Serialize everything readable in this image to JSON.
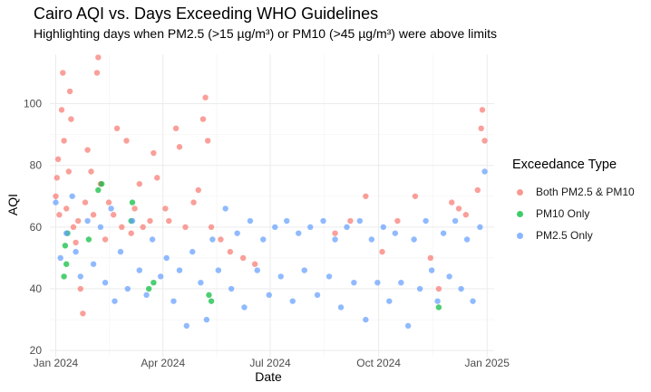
{
  "chart_data": {
    "type": "scatter",
    "title": "Cairo AQI vs. Days Exceeding WHO Guidelines",
    "subtitle": "Highlighting days when PM2.5 (>15 µg/m³) or PM10 (>45 µg/m³) were above limits",
    "xlabel": "Date",
    "ylabel": "AQI",
    "xlim": [
      "2023-12-27",
      "2025-01-07"
    ],
    "ylim": [
      18,
      116
    ],
    "x_ticks": [
      {
        "date": "2024-01-01",
        "label": "Jan 2024"
      },
      {
        "date": "2024-04-01",
        "label": "Apr 2024"
      },
      {
        "date": "2024-07-01",
        "label": "Jul 2024"
      },
      {
        "date": "2024-10-01",
        "label": "Oct 2024"
      },
      {
        "date": "2025-01-01",
        "label": "Jan 2025"
      }
    ],
    "y_ticks": [
      20,
      40,
      60,
      80,
      100
    ],
    "grid": true,
    "legend": {
      "title": "Exceedance Type",
      "placement": "right"
    },
    "series": [
      {
        "name": "Both PM2.5 & PM10",
        "color": "#F8766D",
        "points": [
          [
            "2024-01-01",
            70
          ],
          [
            "2024-01-02",
            76
          ],
          [
            "2024-01-03",
            82
          ],
          [
            "2024-01-04",
            64
          ],
          [
            "2024-01-06",
            98
          ],
          [
            "2024-01-07",
            110
          ],
          [
            "2024-01-08",
            88
          ],
          [
            "2024-01-10",
            66
          ],
          [
            "2024-01-12",
            78
          ],
          [
            "2024-01-13",
            104
          ],
          [
            "2024-01-14",
            95
          ],
          [
            "2024-01-16",
            60
          ],
          [
            "2024-01-18",
            55
          ],
          [
            "2024-01-20",
            62
          ],
          [
            "2024-01-22",
            40
          ],
          [
            "2024-01-24",
            32
          ],
          [
            "2024-01-26",
            68
          ],
          [
            "2024-01-28",
            85
          ],
          [
            "2024-01-31",
            78
          ],
          [
            "2024-02-02",
            64
          ],
          [
            "2024-02-05",
            110
          ],
          [
            "2024-02-06",
            115
          ],
          [
            "2024-02-08",
            74
          ],
          [
            "2024-02-12",
            56
          ],
          [
            "2024-02-15",
            68
          ],
          [
            "2024-02-19",
            64
          ],
          [
            "2024-02-22",
            92
          ],
          [
            "2024-02-26",
            60
          ],
          [
            "2024-03-01",
            88
          ],
          [
            "2024-03-05",
            58
          ],
          [
            "2024-03-08",
            66
          ],
          [
            "2024-03-12",
            74
          ],
          [
            "2024-03-15",
            60
          ],
          [
            "2024-03-21",
            62
          ],
          [
            "2024-03-24",
            84
          ],
          [
            "2024-03-27",
            76
          ],
          [
            "2024-04-03",
            66
          ],
          [
            "2024-04-06",
            62
          ],
          [
            "2024-04-12",
            92
          ],
          [
            "2024-04-15",
            86
          ],
          [
            "2024-04-20",
            60
          ],
          [
            "2024-04-27",
            68
          ],
          [
            "2024-05-01",
            72
          ],
          [
            "2024-05-05",
            95
          ],
          [
            "2024-05-07",
            102
          ],
          [
            "2024-05-09",
            88
          ],
          [
            "2024-05-12",
            60
          ],
          [
            "2024-05-20",
            56
          ],
          [
            "2024-05-28",
            52
          ],
          [
            "2024-06-08",
            50
          ],
          [
            "2024-06-18",
            48
          ],
          [
            "2024-08-25",
            58
          ],
          [
            "2024-09-07",
            62
          ],
          [
            "2024-09-20",
            70
          ],
          [
            "2024-10-04",
            52
          ],
          [
            "2024-10-17",
            62
          ],
          [
            "2024-11-01",
            70
          ],
          [
            "2024-11-14",
            50
          ],
          [
            "2024-11-21",
            40
          ],
          [
            "2024-12-02",
            68
          ],
          [
            "2024-12-08",
            66
          ],
          [
            "2024-12-14",
            64
          ],
          [
            "2024-12-24",
            72
          ],
          [
            "2024-12-27",
            92
          ],
          [
            "2024-12-28",
            98
          ],
          [
            "2024-12-30",
            88
          ]
        ]
      },
      {
        "name": "PM10 Only",
        "color": "#00BA38",
        "points": [
          [
            "2024-01-08",
            44
          ],
          [
            "2024-01-09",
            54
          ],
          [
            "2024-01-10",
            48
          ],
          [
            "2024-01-11",
            58
          ],
          [
            "2024-01-29",
            56
          ],
          [
            "2024-02-06",
            72
          ],
          [
            "2024-02-09",
            74
          ],
          [
            "2024-03-05",
            62
          ],
          [
            "2024-03-06",
            68
          ],
          [
            "2024-03-20",
            40
          ],
          [
            "2024-03-24",
            42
          ],
          [
            "2024-05-10",
            38
          ],
          [
            "2024-05-12",
            36
          ],
          [
            "2024-11-21",
            34
          ]
        ]
      },
      {
        "name": "PM2.5 Only",
        "color": "#619CFF",
        "points": [
          [
            "2024-01-01",
            68
          ],
          [
            "2024-01-05",
            50
          ],
          [
            "2024-01-10",
            58
          ],
          [
            "2024-01-15",
            70
          ],
          [
            "2024-01-18",
            52
          ],
          [
            "2024-01-22",
            44
          ],
          [
            "2024-01-28",
            62
          ],
          [
            "2024-02-02",
            48
          ],
          [
            "2024-02-08",
            60
          ],
          [
            "2024-02-12",
            42
          ],
          [
            "2024-02-17",
            66
          ],
          [
            "2024-02-20",
            36
          ],
          [
            "2024-02-25",
            52
          ],
          [
            "2024-03-02",
            40
          ],
          [
            "2024-03-06",
            62
          ],
          [
            "2024-03-12",
            46
          ],
          [
            "2024-03-18",
            38
          ],
          [
            "2024-03-23",
            56
          ],
          [
            "2024-03-30",
            44
          ],
          [
            "2024-04-04",
            50
          ],
          [
            "2024-04-10",
            36
          ],
          [
            "2024-04-15",
            46
          ],
          [
            "2024-04-21",
            28
          ],
          [
            "2024-04-26",
            52
          ],
          [
            "2024-05-03",
            42
          ],
          [
            "2024-05-08",
            30
          ],
          [
            "2024-05-13",
            56
          ],
          [
            "2024-05-18",
            46
          ],
          [
            "2024-05-24",
            66
          ],
          [
            "2024-05-29",
            40
          ],
          [
            "2024-06-03",
            58
          ],
          [
            "2024-06-09",
            34
          ],
          [
            "2024-06-14",
            62
          ],
          [
            "2024-06-20",
            46
          ],
          [
            "2024-06-25",
            56
          ],
          [
            "2024-06-30",
            38
          ],
          [
            "2024-07-05",
            60
          ],
          [
            "2024-07-10",
            44
          ],
          [
            "2024-07-15",
            62
          ],
          [
            "2024-07-20",
            36
          ],
          [
            "2024-07-25",
            58
          ],
          [
            "2024-07-30",
            46
          ],
          [
            "2024-08-04",
            60
          ],
          [
            "2024-08-10",
            38
          ],
          [
            "2024-08-15",
            62
          ],
          [
            "2024-08-20",
            44
          ],
          [
            "2024-08-25",
            56
          ],
          [
            "2024-08-30",
            34
          ],
          [
            "2024-09-04",
            60
          ],
          [
            "2024-09-10",
            42
          ],
          [
            "2024-09-15",
            62
          ],
          [
            "2024-09-20",
            30
          ],
          [
            "2024-09-25",
            56
          ],
          [
            "2024-09-30",
            42
          ],
          [
            "2024-10-05",
            60
          ],
          [
            "2024-10-10",
            36
          ],
          [
            "2024-10-15",
            58
          ],
          [
            "2024-10-20",
            42
          ],
          [
            "2024-10-26",
            28
          ],
          [
            "2024-10-31",
            56
          ],
          [
            "2024-11-05",
            40
          ],
          [
            "2024-11-10",
            62
          ],
          [
            "2024-11-15",
            46
          ],
          [
            "2024-11-20",
            36
          ],
          [
            "2024-11-25",
            58
          ],
          [
            "2024-11-30",
            44
          ],
          [
            "2024-12-05",
            62
          ],
          [
            "2024-12-10",
            40
          ],
          [
            "2024-12-15",
            56
          ],
          [
            "2024-12-20",
            36
          ],
          [
            "2024-12-26",
            60
          ],
          [
            "2024-12-30",
            78
          ]
        ]
      }
    ]
  }
}
